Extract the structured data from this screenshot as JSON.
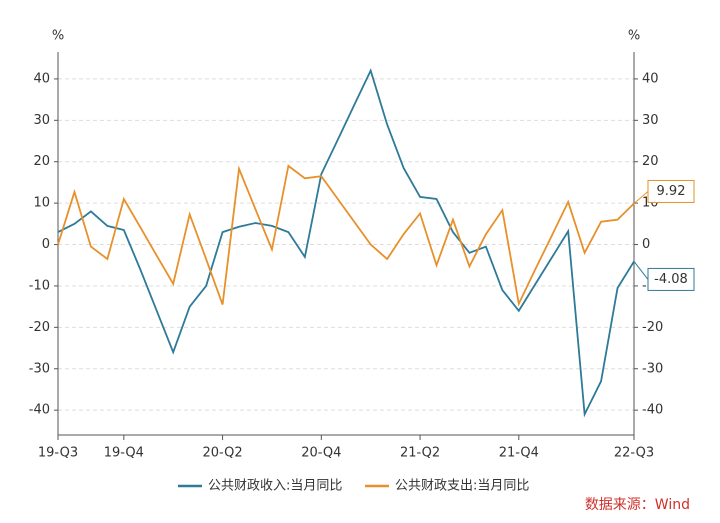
{
  "chart_data": {
    "type": "line",
    "y_unit": "%",
    "y2_unit": "%",
    "categories": [
      "19-Q3",
      null,
      null,
      null,
      "19-Q4",
      null,
      null,
      null,
      null,
      null,
      "20-Q2",
      null,
      null,
      null,
      null,
      null,
      "20-Q4",
      null,
      null,
      null,
      null,
      null,
      "21-Q2",
      null,
      null,
      null,
      null,
      null,
      "21-Q4",
      null,
      null,
      null,
      null,
      null,
      null,
      "22-Q3"
    ],
    "series": [
      {
        "name": "公共财政收入:当月同比",
        "color": "#2e7a99",
        "axis": "y",
        "values": [
          3,
          5,
          8,
          4.5,
          3.5,
          -6,
          -16,
          -26,
          -15,
          -10,
          3,
          4.3,
          5.2,
          4.5,
          3,
          -3,
          17,
          25.3,
          33.7,
          42,
          29,
          18.5,
          11.5,
          11,
          3,
          -2,
          -0.5,
          -11,
          -16,
          -9.6,
          -3.2,
          3.2,
          -41,
          -33,
          -10.5,
          -4.08
        ],
        "value_labels": [
          null,
          null,
          null,
          null,
          null,
          null,
          null,
          null,
          null,
          null,
          null,
          null,
          null,
          null,
          null,
          null,
          null,
          null,
          null,
          null,
          null,
          null,
          null,
          null,
          null,
          null,
          null,
          null,
          null,
          null,
          null,
          null,
          null,
          null,
          null,
          "-4.08"
        ]
      },
      {
        "name": "公共财政支出:当月同比",
        "color": "#e8902a",
        "axis": "y2",
        "values": [
          0,
          12.7,
          -0.5,
          -3.5,
          11,
          4.2,
          -2.7,
          -9.5,
          7.3,
          -3.5,
          -14.5,
          18.3,
          8.5,
          -1.2,
          19,
          16,
          16.5,
          11,
          5.5,
          0,
          -3.5,
          2.5,
          7.5,
          -5,
          6,
          -5.3,
          2.5,
          8.3,
          -14.3,
          -6,
          2.1,
          10.3,
          -2,
          5.5,
          6,
          9.92
        ],
        "value_labels": [
          null,
          null,
          null,
          null,
          null,
          null,
          null,
          null,
          null,
          null,
          null,
          null,
          null,
          null,
          null,
          null,
          null,
          null,
          null,
          null,
          null,
          null,
          null,
          null,
          null,
          null,
          null,
          null,
          null,
          null,
          null,
          null,
          null,
          null,
          null,
          "9.92"
        ]
      }
    ],
    "ylim": [
      -46,
      46.5
    ],
    "yticks": [
      -40,
      -30,
      -20,
      -10,
      0,
      10,
      20,
      30,
      40
    ],
    "y2lim": [
      -46,
      46.5
    ],
    "y2ticks": [
      -40,
      -30,
      -20,
      -10,
      0,
      10,
      20,
      30,
      40
    ],
    "grid": true,
    "source": "数据来源：Wind"
  }
}
